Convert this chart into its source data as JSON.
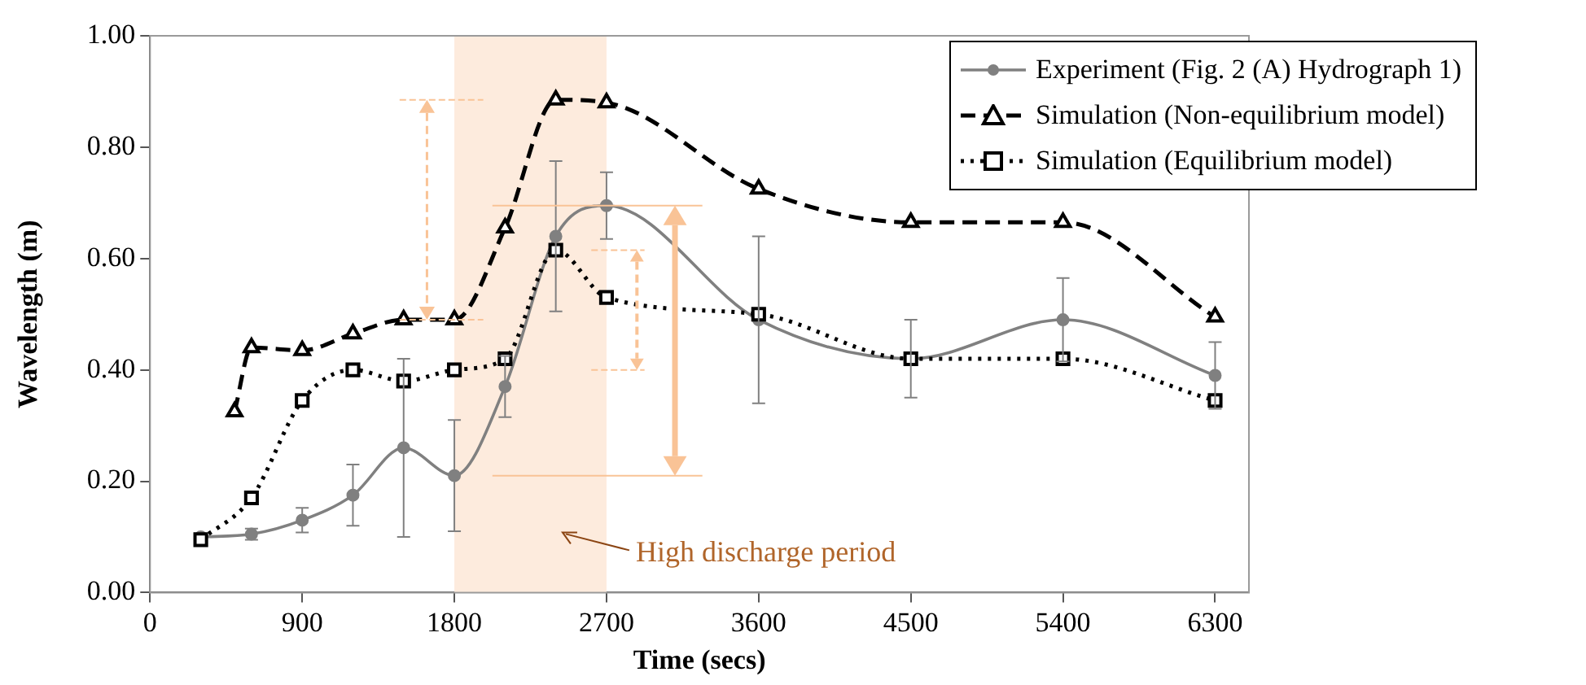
{
  "chart_data": {
    "type": "line",
    "xlabel": "Time (secs)",
    "ylabel": "Wavelength (m)",
    "xlim": [
      0,
      6500
    ],
    "xticks": [
      0,
      900,
      1800,
      2700,
      3600,
      4500,
      5400,
      6300
    ],
    "ylim": [
      0,
      1
    ],
    "yticks": [
      {
        "value": 0,
        "label": "0.00"
      },
      {
        "value": 0.2,
        "label": "0.20"
      },
      {
        "value": 0.4,
        "label": "0.40"
      },
      {
        "value": 0.6,
        "label": "0.60"
      },
      {
        "value": 0.8,
        "label": "0.80"
      },
      {
        "value": 1,
        "label": "1.00"
      }
    ],
    "grid": false,
    "legend": "top right",
    "bands": [
      {
        "axis": "x",
        "from": 1800,
        "to": 2700,
        "label": "High discharge period",
        "color": "#fdebdd"
      }
    ],
    "series": [
      {
        "name": "Experiment (Fig. 2 (A) Hydrograph 1)",
        "color": "#808080",
        "marker": "circle",
        "line_style": "solid",
        "x": [
          300,
          600,
          900,
          1200,
          1500,
          1800,
          2100,
          2400,
          2700,
          3600,
          4500,
          5400,
          6300
        ],
        "values": [
          0.1,
          0.105,
          0.13,
          0.175,
          0.26,
          0.21,
          0.37,
          0.64,
          0.695,
          0.49,
          0.42,
          0.49,
          0.39
        ],
        "errors": [
          null,
          0.01,
          0.022,
          0.055,
          0.16,
          0.1,
          0.055,
          0.135,
          0.06,
          0.15,
          0.07,
          0.075,
          0.06
        ]
      },
      {
        "name": "Simulation (Non-equilibrium model)",
        "color": "#000000",
        "marker": "triangle",
        "line_style": "dashed",
        "x": [
          500,
          600,
          900,
          1200,
          1500,
          1800,
          2100,
          2400,
          2700,
          3600,
          4500,
          5400,
          6300
        ],
        "values": [
          0.325,
          0.44,
          0.435,
          0.465,
          0.49,
          0.49,
          0.655,
          0.885,
          0.88,
          0.725,
          0.665,
          0.665,
          0.495
        ]
      },
      {
        "name": "Simulation (Equilibrium model)",
        "color": "#000000",
        "marker": "square",
        "line_style": "dotted",
        "x": [
          300,
          600,
          900,
          1200,
          1500,
          1800,
          2100,
          2400,
          2700,
          3600,
          4500,
          5400,
          6300
        ],
        "values": [
          0.095,
          0.17,
          0.345,
          0.4,
          0.38,
          0.4,
          0.42,
          0.615,
          0.53,
          0.5,
          0.42,
          0.42,
          0.345
        ]
      }
    ]
  }
}
